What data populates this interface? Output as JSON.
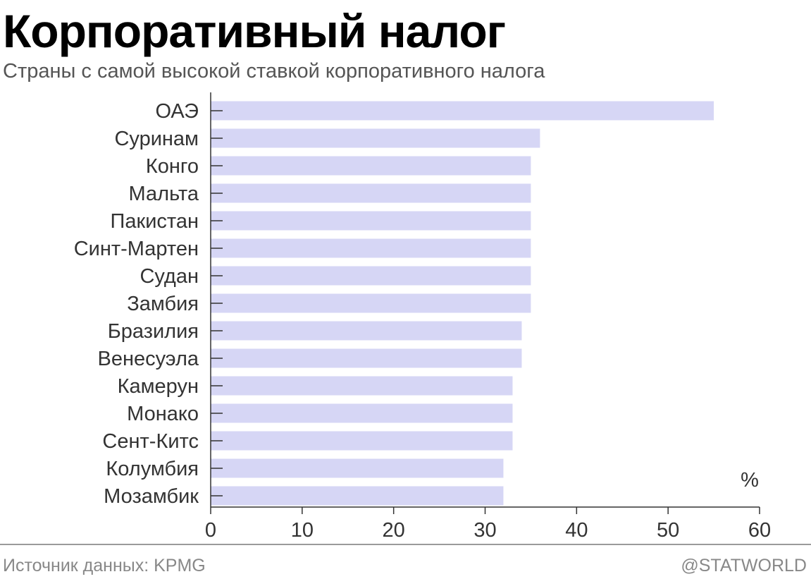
{
  "title": "Корпоративный налог",
  "subtitle": "Страны с самой высокой ставкой корпоративного налога",
  "footer": {
    "source": "Источник данных: KPMG",
    "brand": "@STATWORLD"
  },
  "colors": {
    "bar": "#d6d6f5",
    "grid": "#ffffff",
    "axis": "#333333"
  },
  "chart_data": {
    "type": "bar",
    "orientation": "horizontal",
    "categories": [
      "ОАЭ",
      "Суринам",
      "Конго",
      "Мальта",
      "Пакистан",
      "Синт-Мартен",
      "Судан",
      "Замбия",
      "Бразилия",
      "Венесуэла",
      "Камерун",
      "Монако",
      "Сент-Китс",
      "Колумбия",
      "Мозамбик"
    ],
    "values": [
      55,
      36,
      35,
      35,
      35,
      35,
      35,
      35,
      34,
      34,
      33,
      33,
      33,
      32,
      32
    ],
    "xticks": [
      "0",
      "10",
      "20",
      "30",
      "40",
      "50",
      "60"
    ],
    "xlim": [
      0,
      60
    ],
    "unit": "%",
    "grid": true
  }
}
